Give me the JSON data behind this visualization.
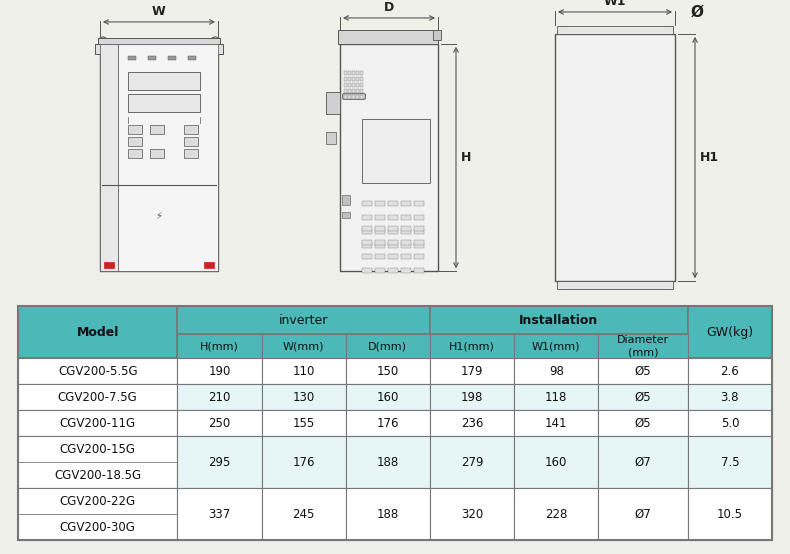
{
  "bg_color": "#f0f0eb",
  "table_header_bg": "#4db8b8",
  "table_row_bg_white": "#ffffff",
  "table_row_bg_light": "#e6f5f5",
  "table_border_color": "#777777",
  "header_text_color": "#111111",
  "data_text_color": "#111111",
  "line_color": "#555555",
  "rows": [
    [
      "CGV200-5.5G",
      "190",
      "110",
      "150",
      "179",
      "98",
      "Ø5",
      "2.6"
    ],
    [
      "CGV200-7.5G",
      "210",
      "130",
      "160",
      "198",
      "118",
      "Ø5",
      "3.8"
    ],
    [
      "CGV200-11G",
      "250",
      "155",
      "176",
      "236",
      "141",
      "Ø5",
      "5.0"
    ],
    [
      "CGV200-15G",
      "295",
      "176",
      "188",
      "279",
      "160",
      "Ø7",
      "7.5"
    ],
    [
      "CGV200-18.5G",
      "295",
      "176",
      "188",
      "279",
      "160",
      "Ø7",
      "7.5"
    ],
    [
      "CGV200-22G",
      "337",
      "245",
      "188",
      "320",
      "228",
      "Ø7",
      "10.5"
    ],
    [
      "CGV200-30G",
      "337",
      "245",
      "188",
      "320",
      "228",
      "Ø7",
      "10.5"
    ]
  ]
}
